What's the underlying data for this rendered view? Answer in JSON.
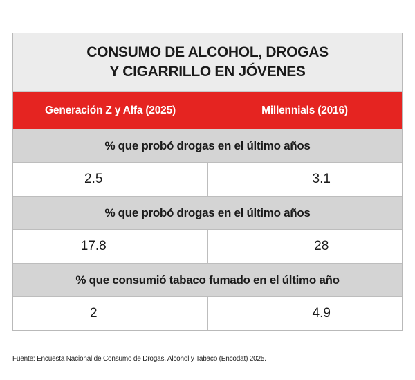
{
  "chart_data": {
    "type": "table",
    "title_lines": [
      "CONSUMO DE ALCOHOL, DROGAS",
      "Y CIGARRILLO EN JÓVENES"
    ],
    "columns": [
      "Generación Z y Alfa (2025)",
      "Millennials (2016)"
    ],
    "rows": [
      {
        "label": "% que probó drogas en el último años",
        "values": [
          "2.5",
          "3.1"
        ]
      },
      {
        "label": "% que probó drogas en el último años",
        "values": [
          "17.8",
          "28"
        ]
      },
      {
        "label": "% que consumió tabaco fumado en el último año",
        "values": [
          "2",
          "4.9"
        ]
      }
    ],
    "source": "Fuente: Encuesta Nacional de Consumo de Drogas, Alcohol y Tabaco (Encodat) 2025.",
    "colors": {
      "header": "#e52421",
      "title_bg": "#ececec",
      "section_bg": "#d4d4d4"
    }
  }
}
